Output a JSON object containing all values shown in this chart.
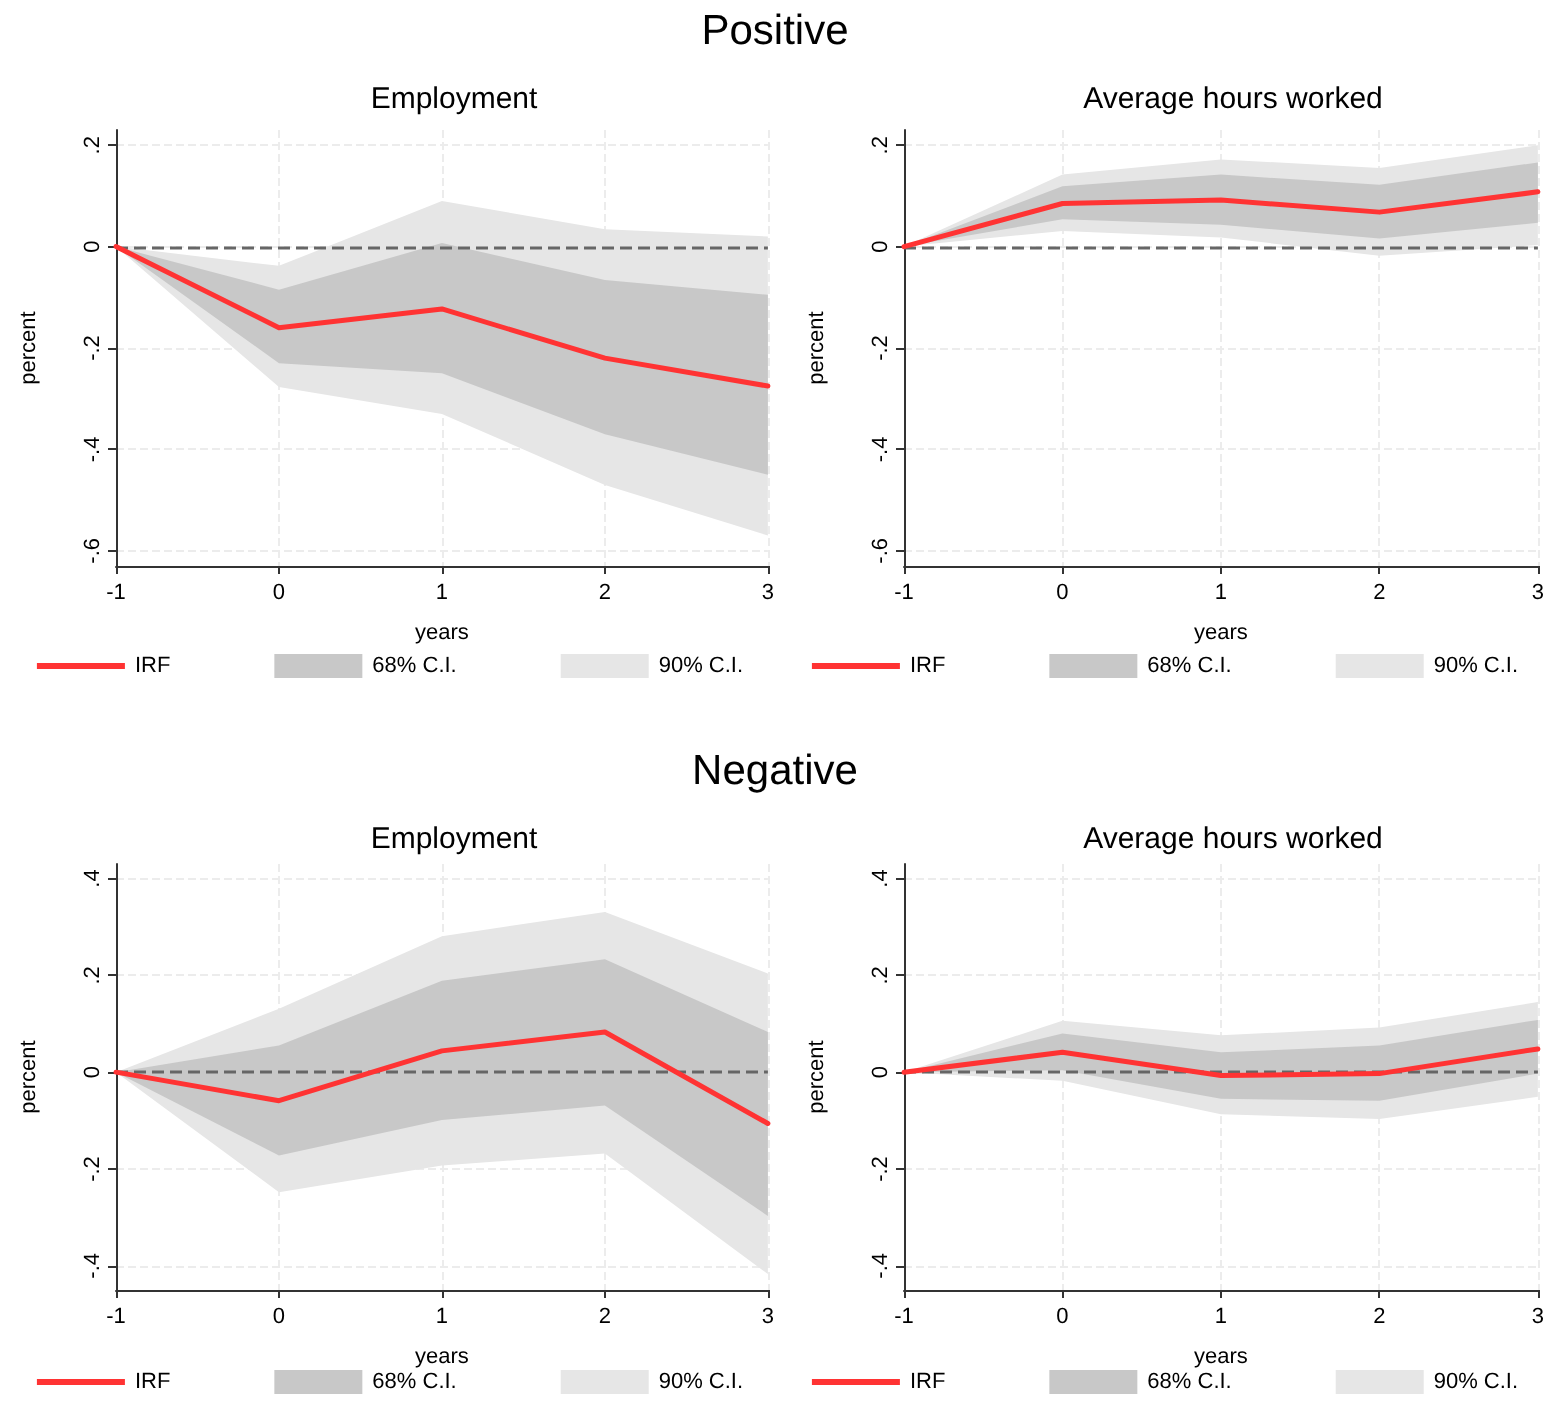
{
  "chart_data": [
    {
      "type": "line",
      "title": "Employment",
      "annotations": [
        "Positive"
      ],
      "xlabel": "years",
      "ylabel": "percent",
      "x": [
        -1,
        0,
        1,
        2,
        3
      ],
      "xlim": [
        -1,
        3
      ],
      "xticks": [
        -1,
        0,
        1,
        2,
        3
      ],
      "ylim": [
        -0.63,
        0.23
      ],
      "yticks": [
        {
          "value": -0.6,
          "label": "-.6"
        },
        {
          "value": -0.4,
          "label": "-.4"
        },
        {
          "value": -0.2,
          "label": "-.2"
        },
        {
          "value": 0,
          "label": "0"
        },
        {
          "value": 0.2,
          "label": ".2"
        }
      ],
      "grid": true,
      "legend": "bottom",
      "marker": "none",
      "ref_lines": [
        {
          "axis": "y",
          "value": 0,
          "color": "#666666",
          "line_style": "dashed"
        }
      ],
      "series": [
        {
          "name": "IRF",
          "type": "line",
          "color": "#ff3333",
          "values": [
            0,
            -0.16,
            -0.123,
            -0.22,
            -0.275
          ]
        },
        {
          "name": "68% C.I.",
          "type": "area",
          "color": "#c8c8c8",
          "values": [
            null,
            null,
            null,
            null,
            null
          ],
          "lower": [
            0,
            -0.23,
            -0.25,
            -0.37,
            -0.45
          ],
          "upper": [
            0,
            -0.085,
            0.007,
            -0.066,
            -0.095
          ]
        },
        {
          "name": "90% C.I.",
          "type": "area",
          "color": "#e6e6e6",
          "values": [
            null,
            null,
            null,
            null,
            null
          ],
          "lower": [
            0,
            -0.277,
            -0.33,
            -0.47,
            -0.57
          ],
          "upper": [
            0,
            -0.038,
            0.09,
            0.034,
            0.02
          ]
        }
      ]
    },
    {
      "type": "line",
      "title": "Average hours worked",
      "xlabel": "years",
      "ylabel": "percent",
      "x": [
        -1,
        0,
        1,
        2,
        3
      ],
      "xlim": [
        -1,
        3
      ],
      "xticks": [
        -1,
        0,
        1,
        2,
        3
      ],
      "ylim": [
        -0.63,
        0.23
      ],
      "yticks": [
        {
          "value": -0.6,
          "label": "-.6"
        },
        {
          "value": -0.4,
          "label": "-.4"
        },
        {
          "value": -0.2,
          "label": "-.2"
        },
        {
          "value": 0,
          "label": "0"
        },
        {
          "value": 0.2,
          "label": ".2"
        }
      ],
      "grid": true,
      "legend": "bottom",
      "marker": "none",
      "ref_lines": [
        {
          "axis": "y",
          "value": 0,
          "color": "#666666",
          "line_style": "dashed"
        }
      ],
      "series": [
        {
          "name": "IRF",
          "type": "line",
          "color": "#ff3333",
          "values": [
            0,
            0.085,
            0.092,
            0.068,
            0.108
          ]
        },
        {
          "name": "68% C.I.",
          "type": "area",
          "color": "#c8c8c8",
          "values": [
            null,
            null,
            null,
            null,
            null
          ],
          "lower": [
            0,
            0.054,
            0.043,
            0.016,
            0.047
          ],
          "upper": [
            0,
            0.119,
            0.142,
            0.122,
            0.166
          ]
        },
        {
          "name": "90% C.I.",
          "type": "area",
          "color": "#e6e6e6",
          "values": [
            null,
            null,
            null,
            null,
            null
          ],
          "lower": [
            0,
            0.031,
            0.018,
            -0.018,
            0.003
          ],
          "upper": [
            0,
            0.142,
            0.172,
            0.155,
            0.2
          ]
        }
      ]
    },
    {
      "type": "line",
      "title": "Employment",
      "annotations": [
        "Negative"
      ],
      "xlabel": "years",
      "ylabel": "percent",
      "x": [
        -1,
        0,
        1,
        2,
        3
      ],
      "xlim": [
        -1,
        3
      ],
      "xticks": [
        -1,
        0,
        1,
        2,
        3
      ],
      "ylim": [
        -0.45,
        0.43
      ],
      "yticks": [
        {
          "value": -0.4,
          "label": "-.4"
        },
        {
          "value": -0.2,
          "label": "-.2"
        },
        {
          "value": 0,
          "label": "0"
        },
        {
          "value": 0.2,
          "label": ".2"
        },
        {
          "value": 0.4,
          "label": ".4"
        }
      ],
      "grid": true,
      "legend": "bottom",
      "marker": "none",
      "ref_lines": [
        {
          "axis": "y",
          "value": 0,
          "color": "#666666",
          "line_style": "dashed"
        }
      ],
      "series": [
        {
          "name": "IRF",
          "type": "line",
          "color": "#ff3333",
          "values": [
            0,
            -0.059,
            0.044,
            0.083,
            -0.106
          ]
        },
        {
          "name": "68% C.I.",
          "type": "area",
          "color": "#c8c8c8",
          "values": [
            null,
            null,
            null,
            null,
            null
          ],
          "lower": [
            0,
            -0.172,
            -0.099,
            -0.069,
            -0.297
          ],
          "upper": [
            0,
            0.055,
            0.189,
            0.233,
            0.083
          ]
        },
        {
          "name": "90% C.I.",
          "type": "area",
          "color": "#e6e6e6",
          "values": [
            null,
            null,
            null,
            null,
            null
          ],
          "lower": [
            0,
            -0.248,
            -0.193,
            -0.168,
            -0.417
          ],
          "upper": [
            0,
            0.131,
            0.281,
            0.331,
            0.204
          ]
        }
      ]
    },
    {
      "type": "line",
      "title": "Average hours worked",
      "xlabel": "years",
      "ylabel": "percent",
      "x": [
        -1,
        0,
        1,
        2,
        3
      ],
      "xlim": [
        -1,
        3
      ],
      "xticks": [
        -1,
        0,
        1,
        2,
        3
      ],
      "ylim": [
        -0.45,
        0.43
      ],
      "yticks": [
        {
          "value": -0.4,
          "label": "-.4"
        },
        {
          "value": -0.2,
          "label": "-.2"
        },
        {
          "value": 0,
          "label": "0"
        },
        {
          "value": 0.2,
          "label": ".2"
        },
        {
          "value": 0.4,
          "label": ".4"
        }
      ],
      "grid": true,
      "legend": "bottom",
      "marker": "none",
      "ref_lines": [
        {
          "axis": "y",
          "value": 0,
          "color": "#666666",
          "line_style": "dashed"
        }
      ],
      "series": [
        {
          "name": "IRF",
          "type": "line",
          "color": "#ff3333",
          "values": [
            0,
            0.041,
            -0.007,
            -0.003,
            0.048
          ]
        },
        {
          "name": "68% C.I.",
          "type": "area",
          "color": "#c8c8c8",
          "values": [
            null,
            null,
            null,
            null,
            null
          ],
          "lower": [
            0,
            0.004,
            -0.055,
            -0.059,
            -0.003
          ],
          "upper": [
            0,
            0.08,
            0.041,
            0.055,
            0.108
          ]
        },
        {
          "name": "90% C.I.",
          "type": "area",
          "color": "#e6e6e6",
          "values": [
            null,
            null,
            null,
            null,
            null
          ],
          "lower": [
            0,
            -0.018,
            -0.087,
            -0.097,
            -0.051
          ],
          "upper": [
            0,
            0.106,
            0.076,
            0.092,
            0.145
          ]
        }
      ]
    }
  ]
}
